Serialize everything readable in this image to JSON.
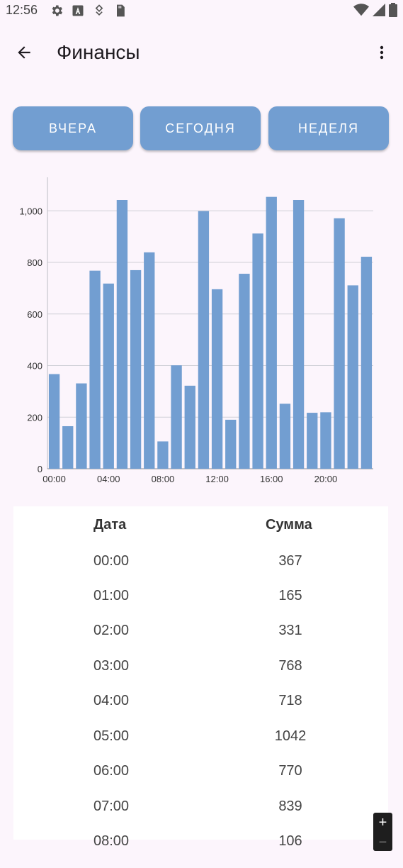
{
  "status_bar": {
    "time": "12:56"
  },
  "app_bar": {
    "title": "Финансы"
  },
  "periods": [
    "ВЧЕРА",
    "СЕГОДНЯ",
    "НЕДЕЛЯ"
  ],
  "colors": {
    "accent": "#729ed1",
    "background": "#fcf5fc"
  },
  "chart_data": {
    "type": "bar",
    "categories": [
      "00:00",
      "01:00",
      "02:00",
      "03:00",
      "04:00",
      "05:00",
      "06:00",
      "07:00",
      "08:00",
      "09:00",
      "10:00",
      "11:00",
      "12:00",
      "13:00",
      "14:00",
      "15:00",
      "16:00",
      "17:00",
      "18:00",
      "19:00",
      "20:00",
      "21:00",
      "22:00",
      "23:00"
    ],
    "values": [
      367,
      165,
      331,
      768,
      718,
      1042,
      770,
      839,
      106,
      401,
      322,
      999,
      696,
      190,
      756,
      912,
      1054,
      252,
      1042,
      217,
      219,
      971,
      711,
      822
    ],
    "x_tick_labels": [
      "00:00",
      "04:00",
      "08:00",
      "12:00",
      "16:00",
      "20:00"
    ],
    "y_tick_labels": [
      "0",
      "200",
      "400",
      "600",
      "800",
      "1,000"
    ],
    "ylim": [
      0,
      1130
    ],
    "grid": true
  },
  "table": {
    "headers": {
      "date": "Дата",
      "sum": "Сумма"
    },
    "rows": [
      {
        "date": "00:00",
        "sum": "367"
      },
      {
        "date": "01:00",
        "sum": "165"
      },
      {
        "date": "02:00",
        "sum": "331"
      },
      {
        "date": "03:00",
        "sum": "768"
      },
      {
        "date": "04:00",
        "sum": "718"
      },
      {
        "date": "05:00",
        "sum": "1042"
      },
      {
        "date": "06:00",
        "sum": "770"
      },
      {
        "date": "07:00",
        "sum": "839"
      },
      {
        "date": "08:00",
        "sum": "106"
      }
    ]
  },
  "zoom": {
    "plus": "+",
    "minus": "−"
  }
}
